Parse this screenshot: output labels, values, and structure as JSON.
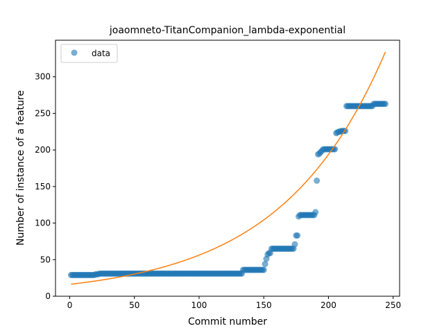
{
  "chart_data": {
    "type": "scatter",
    "title": "joaomneto-TitanCompanion_lambda-exponential",
    "xlabel": "Commit number",
    "ylabel": "Number of instance of a feature",
    "xlim": [
      -11,
      255
    ],
    "ylim": [
      0,
      350
    ],
    "xticks": [
      0,
      50,
      100,
      150,
      200,
      250
    ],
    "yticks": [
      0,
      50,
      100,
      150,
      200,
      250,
      300
    ],
    "legend": {
      "placement": "top-left",
      "entries": [
        "data"
      ]
    },
    "colors": {
      "data": "#1f77b4",
      "fit": "#ff7f0e"
    },
    "data_segments": [
      {
        "x_start": 1,
        "x_end": 19,
        "y": 29
      },
      {
        "x_start": 20,
        "x_end": 22,
        "y": 30
      },
      {
        "x_start": 23,
        "x_end": 133,
        "y": 31
      },
      {
        "x_start": 134,
        "x_end": 150,
        "y": 36
      },
      {
        "x_start": 157,
        "x_end": 173,
        "y": 65
      },
      {
        "x_start": 179,
        "x_end": 189,
        "y": 111
      },
      {
        "x_start": 196,
        "x_end": 204,
        "y": 201
      },
      {
        "x_start": 210,
        "x_end": 213,
        "y": 226
      },
      {
        "x_start": 214,
        "x_end": 234,
        "y": 260
      },
      {
        "x_start": 235,
        "x_end": 244,
        "y": 263
      }
    ],
    "data_points": [
      [
        151,
        44
      ],
      [
        152,
        51
      ],
      [
        153,
        57
      ],
      [
        154,
        59
      ],
      [
        155,
        59
      ],
      [
        156,
        65
      ],
      [
        174,
        71
      ],
      [
        175,
        83
      ],
      [
        176,
        83
      ],
      [
        177,
        109
      ],
      [
        178,
        111
      ],
      [
        190,
        115
      ],
      [
        191,
        158
      ],
      [
        192,
        194
      ],
      [
        193,
        195
      ],
      [
        194,
        197
      ],
      [
        195,
        199
      ],
      [
        205,
        201
      ],
      [
        206,
        223
      ],
      [
        207,
        224
      ],
      [
        208,
        225
      ],
      [
        209,
        225
      ]
    ],
    "fit": {
      "type": "exponential",
      "x_range": [
        1,
        244
      ],
      "y_at_start": 16.5,
      "y_at_end": 334
    }
  }
}
